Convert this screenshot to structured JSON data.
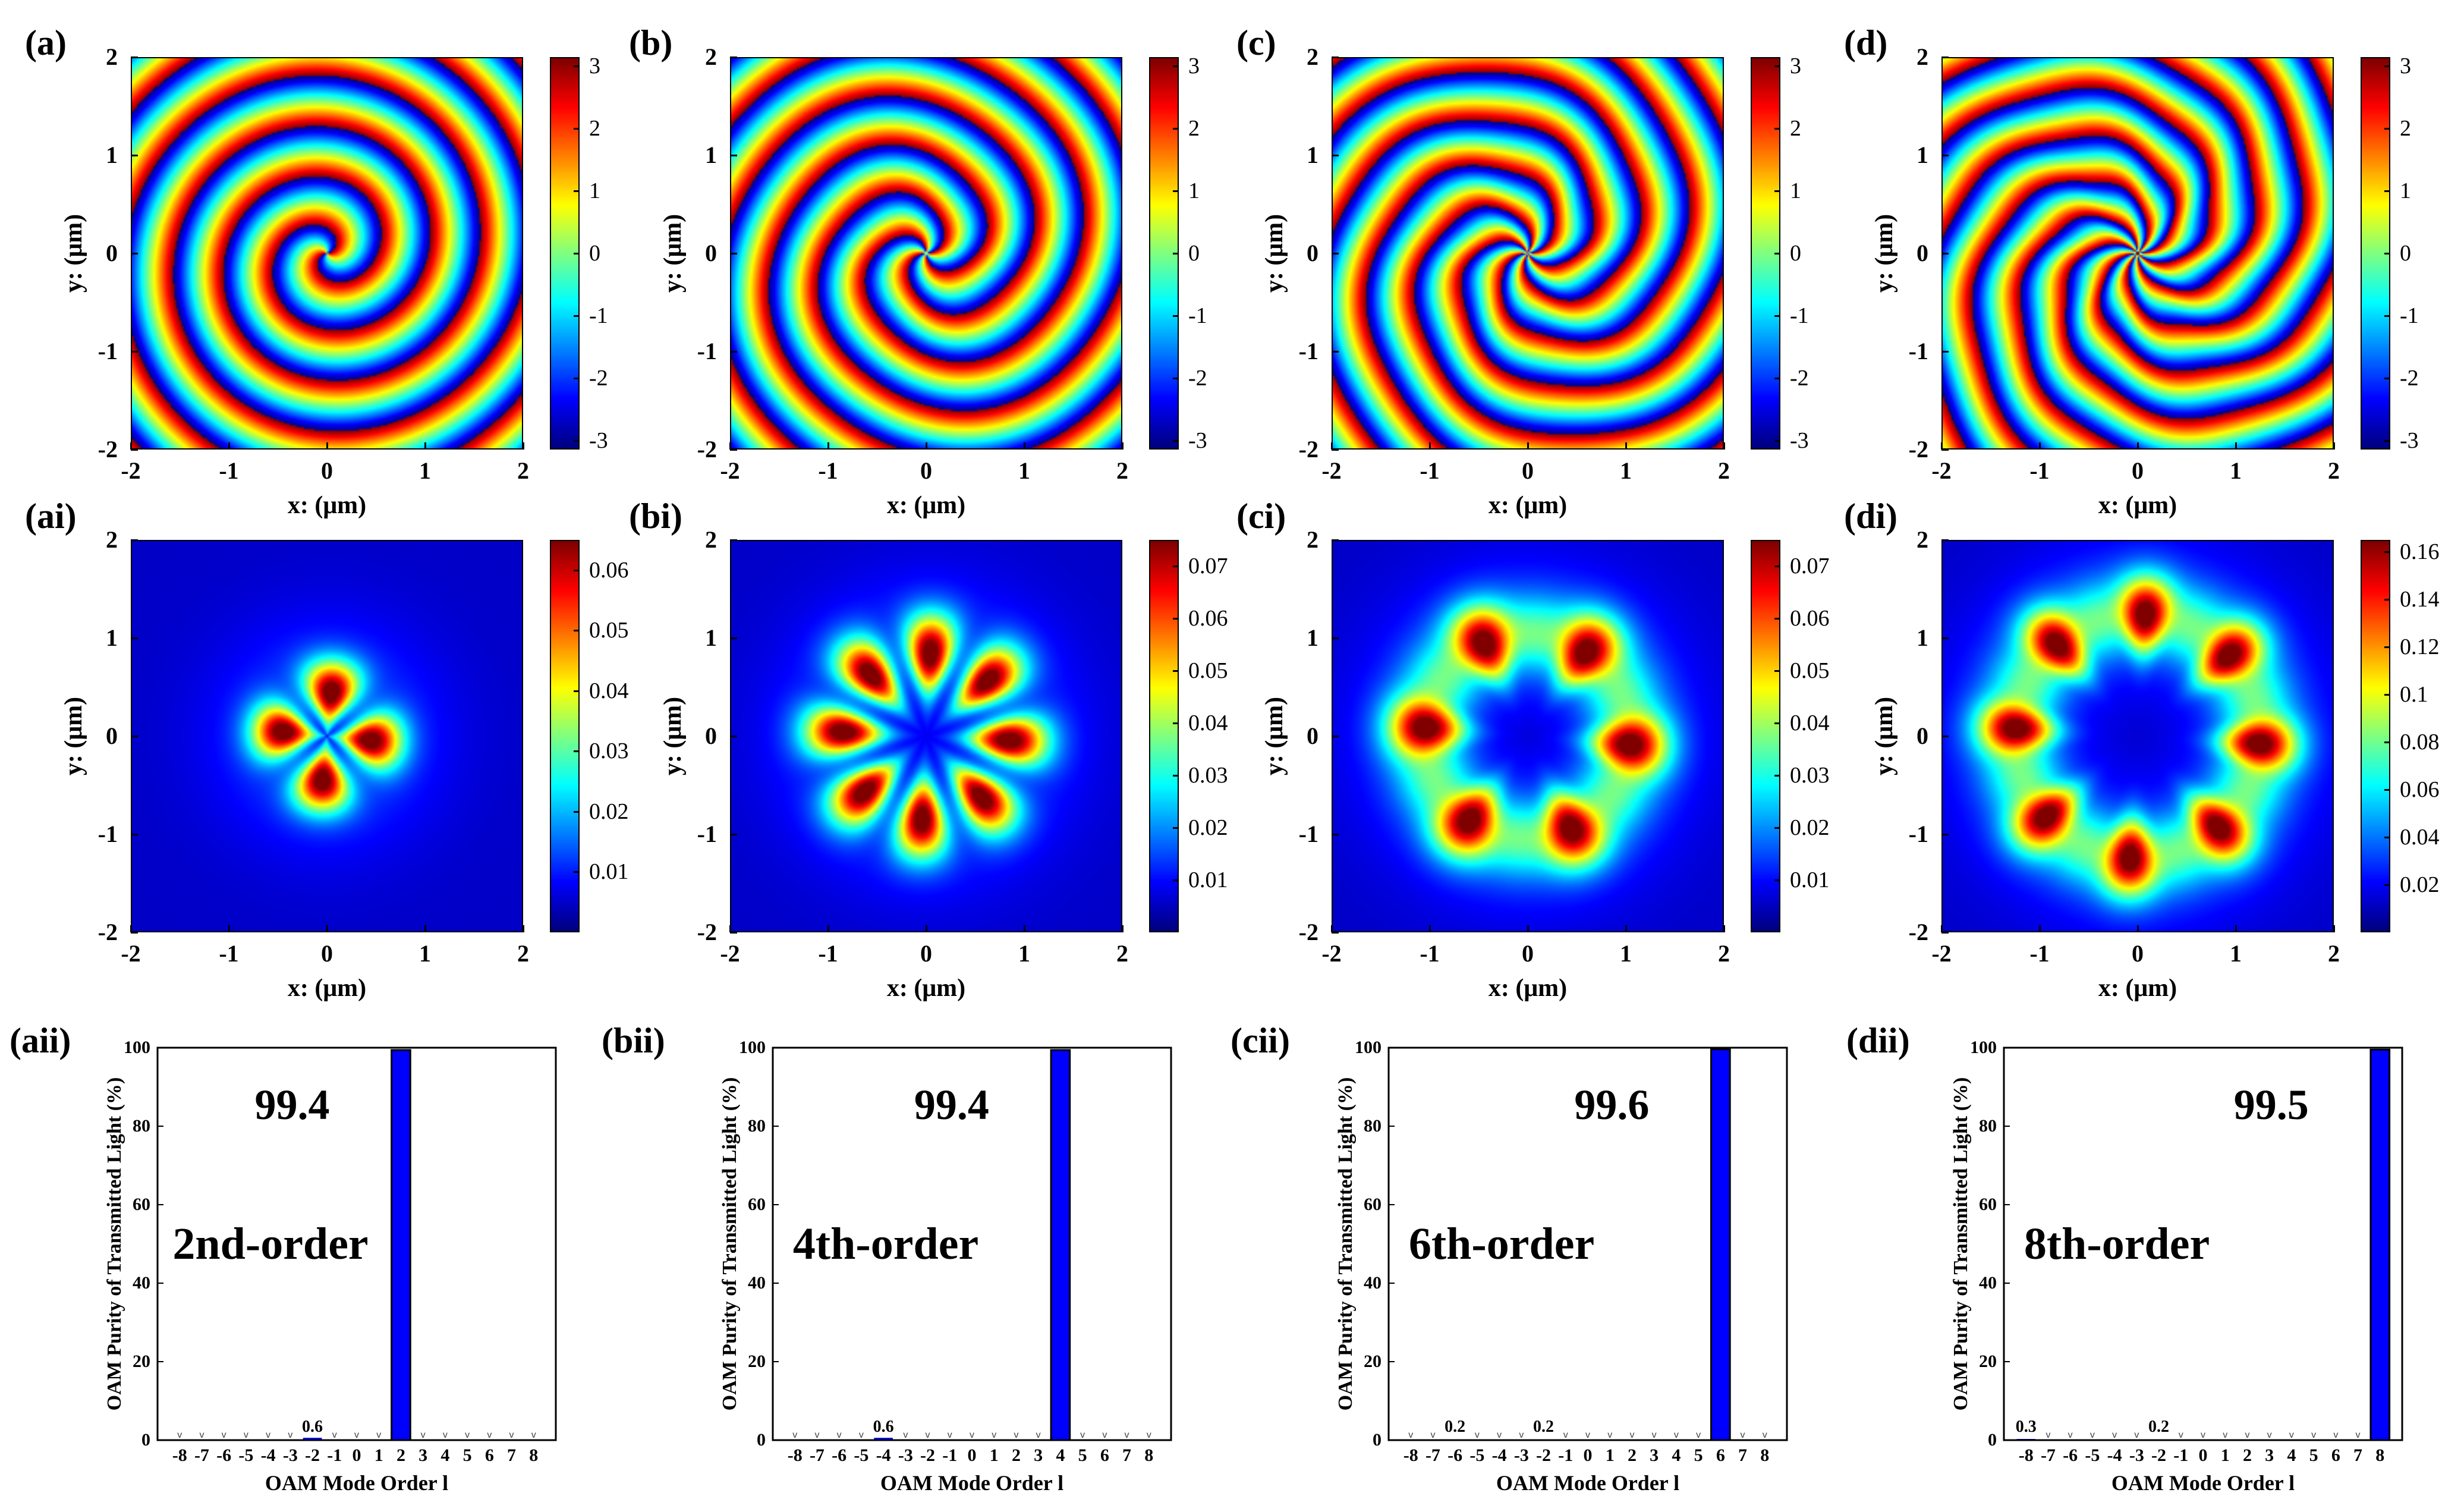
{
  "figure": {
    "rows": [
      {
        "kind": "phase",
        "panels": [
          {
            "label": "(a)",
            "l": 2
          },
          {
            "label": "(b)",
            "l": 4
          },
          {
            "label": "(c)",
            "l": 6
          },
          {
            "label": "(d)",
            "l": 8
          }
        ]
      },
      {
        "kind": "intensity",
        "panels": [
          {
            "label": "(ai)",
            "l": 2,
            "peak_radius_um": 0.45,
            "lobes": 4,
            "max": 0.065
          },
          {
            "label": "(bi)",
            "l": 4,
            "peak_radius_um": 0.85,
            "lobes": 8,
            "max": 0.075
          },
          {
            "label": "(ci)",
            "l": 6,
            "peak_radius_um": 1.05,
            "lobes": 6,
            "max": 0.075
          },
          {
            "label": "(di)",
            "l": 8,
            "peak_radius_um": 1.25,
            "lobes": 8,
            "max": 0.165
          }
        ]
      },
      {
        "kind": "bar",
        "panels": [
          {
            "label": "(aii)"
          },
          {
            "label": "(bii)"
          },
          {
            "label": "(cii)"
          },
          {
            "label": "(dii)"
          }
        ]
      }
    ],
    "map_axes": {
      "xlabel": "x: (μm)",
      "ylabel": "y: (μm)",
      "ticks": [
        "-2",
        "-1",
        "0",
        "1",
        "2"
      ],
      "range": [
        -2,
        2
      ]
    },
    "colorbars": {
      "phase": [
        "3",
        "2",
        "1",
        "0",
        "-1",
        "-2",
        "-3"
      ],
      "ai": [
        "0.06",
        "0.05",
        "0.04",
        "0.03",
        "0.02",
        "0.01"
      ],
      "bi": [
        "0.07",
        "0.06",
        "0.05",
        "0.04",
        "0.03",
        "0.02",
        "0.01"
      ],
      "ci": [
        "0.07",
        "0.06",
        "0.05",
        "0.04",
        "0.03",
        "0.02",
        "0.01"
      ],
      "di": [
        "0.16",
        "0.14",
        "0.12",
        "0.1",
        "0.08",
        "0.06",
        "0.04",
        "0.02"
      ]
    },
    "bar_axes": {
      "ylabel": "OAM  Purity  of  Transmitted  Light (%)",
      "xlabel": "OAM  Mode  Order  l",
      "yticks": [
        "100",
        "80",
        "60",
        "40",
        "20",
        "0"
      ]
    }
  },
  "chart_data": [
    {
      "type": "heatmap",
      "title": "(a)",
      "quantity": "phase",
      "topological_charge": 2,
      "xlabel": "x: (μm)",
      "ylabel": "y: (μm)",
      "xlim": [
        -2,
        2
      ],
      "ylim": [
        -2,
        2
      ],
      "colorbar_range": [
        -3.14,
        3.14
      ]
    },
    {
      "type": "heatmap",
      "title": "(b)",
      "quantity": "phase",
      "topological_charge": 4,
      "xlabel": "x: (μm)",
      "ylabel": "y: (μm)",
      "xlim": [
        -2,
        2
      ],
      "ylim": [
        -2,
        2
      ],
      "colorbar_range": [
        -3.14,
        3.14
      ]
    },
    {
      "type": "heatmap",
      "title": "(c)",
      "quantity": "phase",
      "topological_charge": 6,
      "xlabel": "x: (μm)",
      "ylabel": "y: (μm)",
      "xlim": [
        -2,
        2
      ],
      "ylim": [
        -2,
        2
      ],
      "colorbar_range": [
        -3.14,
        3.14
      ]
    },
    {
      "type": "heatmap",
      "title": "(d)",
      "quantity": "phase",
      "topological_charge": 8,
      "xlabel": "x: (μm)",
      "ylabel": "y: (μm)",
      "xlim": [
        -2,
        2
      ],
      "ylim": [
        -2,
        2
      ],
      "colorbar_range": [
        -3.14,
        3.14
      ]
    },
    {
      "type": "heatmap",
      "title": "(ai)",
      "quantity": "intensity",
      "xlabel": "x: (μm)",
      "ylabel": "y: (μm)",
      "xlim": [
        -2,
        2
      ],
      "ylim": [
        -2,
        2
      ],
      "colorbar_range": [
        0,
        0.066
      ]
    },
    {
      "type": "heatmap",
      "title": "(bi)",
      "quantity": "intensity",
      "xlabel": "x: (μm)",
      "ylabel": "y: (μm)",
      "xlim": [
        -2,
        2
      ],
      "ylim": [
        -2,
        2
      ],
      "colorbar_range": [
        0,
        0.075
      ]
    },
    {
      "type": "heatmap",
      "title": "(ci)",
      "quantity": "intensity",
      "xlabel": "x: (μm)",
      "ylabel": "y: (μm)",
      "xlim": [
        -2,
        2
      ],
      "ylim": [
        -2,
        2
      ],
      "colorbar_range": [
        0,
        0.075
      ]
    },
    {
      "type": "heatmap",
      "title": "(di)",
      "quantity": "intensity",
      "xlabel": "x: (μm)",
      "ylabel": "y: (μm)",
      "xlim": [
        -2,
        2
      ],
      "ylim": [
        -2,
        2
      ],
      "colorbar_range": [
        0,
        0.166
      ]
    },
    {
      "type": "bar",
      "title": "(aii)",
      "categories": [
        "-8",
        "-7",
        "-6",
        "-5",
        "-4",
        "-3",
        "-2",
        "-1",
        "0",
        "1",
        "2",
        "3",
        "4",
        "5",
        "6",
        "7",
        "8"
      ],
      "values": [
        0,
        0,
        0,
        0,
        0,
        0,
        0.6,
        0,
        0,
        0,
        99.4,
        0,
        0,
        0,
        0,
        0,
        0
      ],
      "labels": [
        {
          "category": "-2",
          "text": "0.6"
        },
        {
          "category": "2",
          "text": "99.4"
        }
      ],
      "annotation": "2nd-order",
      "main_value": "99.4",
      "xlabel": "OAM  Mode  Order  l",
      "ylabel": "OAM  Purity  of  Transmitted  Light (%)",
      "ylim": [
        0,
        100
      ]
    },
    {
      "type": "bar",
      "title": "(bii)",
      "categories": [
        "-8",
        "-7",
        "-6",
        "-5",
        "-4",
        "-3",
        "-2",
        "-1",
        "0",
        "1",
        "2",
        "3",
        "4",
        "5",
        "6",
        "7",
        "8"
      ],
      "values": [
        0,
        0,
        0,
        0,
        0.6,
        0,
        0,
        0,
        0,
        0,
        0,
        0,
        99.4,
        0,
        0,
        0,
        0
      ],
      "labels": [
        {
          "category": "-4",
          "text": "0.6"
        },
        {
          "category": "4",
          "text": "99.4"
        }
      ],
      "annotation": "4th-order",
      "main_value": "99.4",
      "xlabel": "OAM  Mode  Order  l",
      "ylabel": "OAM  Purity  of  Transmitted  Light (%)",
      "ylim": [
        0,
        100
      ]
    },
    {
      "type": "bar",
      "title": "(cii)",
      "categories": [
        "-8",
        "-7",
        "-6",
        "-5",
        "-4",
        "-3",
        "-2",
        "-1",
        "0",
        "1",
        "2",
        "3",
        "4",
        "5",
        "6",
        "7",
        "8"
      ],
      "values": [
        0,
        0,
        0.2,
        0,
        0,
        0,
        0.2,
        0,
        0,
        0,
        0,
        0,
        0,
        0,
        99.6,
        0,
        0
      ],
      "labels": [
        {
          "category": "-6",
          "text": "0.2"
        },
        {
          "category": "-2",
          "text": "0.2"
        },
        {
          "category": "6",
          "text": "99.6"
        }
      ],
      "annotation": "6th-order",
      "main_value": "99.6",
      "xlabel": "OAM  Mode  Order  l",
      "ylabel": "OAM  Purity  of  Transmitted  Light (%)",
      "ylim": [
        0,
        100
      ]
    },
    {
      "type": "bar",
      "title": "(dii)",
      "categories": [
        "-8",
        "-7",
        "-6",
        "-5",
        "-4",
        "-3",
        "-2",
        "-1",
        "0",
        "1",
        "2",
        "3",
        "4",
        "5",
        "6",
        "7",
        "8"
      ],
      "values": [
        0.3,
        0,
        0,
        0,
        0,
        0,
        0.2,
        0,
        0,
        0,
        0,
        0,
        0,
        0,
        0,
        0,
        99.5
      ],
      "labels": [
        {
          "category": "-8",
          "text": "0.3"
        },
        {
          "category": "-2",
          "text": "0.2"
        },
        {
          "category": "8",
          "text": "99.5"
        }
      ],
      "annotation": "8th-order",
      "main_value": "99.5",
      "xlabel": "OAM  Mode  Order  l",
      "ylabel": "OAM  Purity  of  Transmitted  Light (%)",
      "ylim": [
        0,
        100
      ]
    }
  ]
}
